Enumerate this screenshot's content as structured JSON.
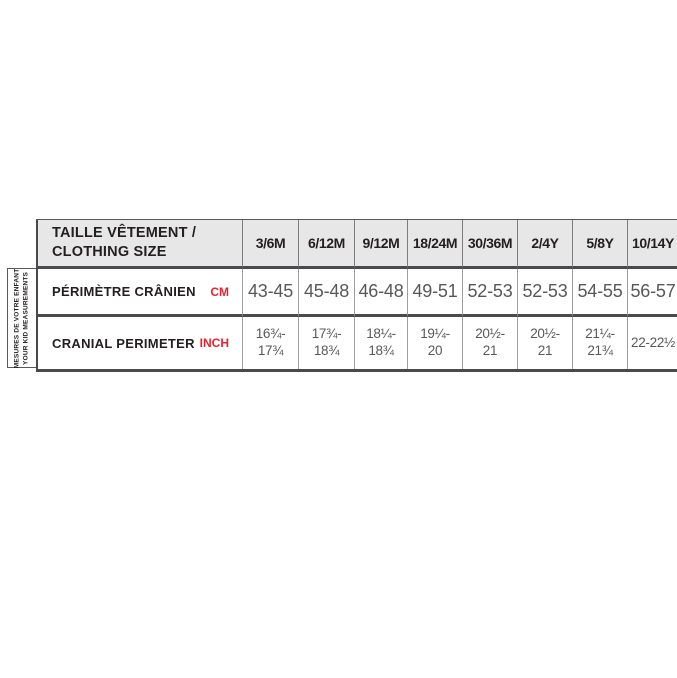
{
  "colors": {
    "accent_red": "#e8232b",
    "header_bg": "#e7e7e7",
    "border_dark": "#4a4a4c",
    "border_light": "#9e9e9e",
    "text_dark": "#231f20",
    "text_value": "#58585a"
  },
  "side_label": {
    "line1": "MESURES DE VOTRE ENFANT",
    "line2": "YOUR KID MEASUREMENTS"
  },
  "table": {
    "header_label": "TAILLE VÊTEMENT /\nCLOTHING SIZE",
    "rows": [
      {
        "label": "PÉRIMÈTRE CRÂNIEN",
        "unit": "CM"
      },
      {
        "label": "CRANIAL PERIMETER",
        "unit": "INCH"
      }
    ],
    "columns": [
      {
        "size": "3/6M",
        "cm": "43-45",
        "inch_line1": "16¾-",
        "inch_line2": "17¾"
      },
      {
        "size": "6/12M",
        "cm": "45-48",
        "inch_line1": "17¾-",
        "inch_line2": "18¾"
      },
      {
        "size": "9/12M",
        "cm": "46-48",
        "inch_line1": "18¼-",
        "inch_line2": "18¾"
      },
      {
        "size": "18/24M",
        "cm": "49-51",
        "inch_line1": "19¼-",
        "inch_line2": "20"
      },
      {
        "size": "30/36M",
        "cm": "52-53",
        "inch_line1": "20½-",
        "inch_line2": "21"
      },
      {
        "size": "2/4Y",
        "cm": "52-53",
        "inch_line1": "20½-",
        "inch_line2": "21"
      },
      {
        "size": "5/8Y",
        "cm": "54-55",
        "inch_line1": "21¼-",
        "inch_line2": "21¾"
      },
      {
        "size": "10/14Y",
        "cm": "56-57",
        "inch_line1": "22-22½",
        "inch_line2": ""
      }
    ]
  },
  "chart_data": {
    "type": "table",
    "title": "TAILLE VÊTEMENT / CLOTHING SIZE",
    "categories": [
      "3/6M",
      "6/12M",
      "9/12M",
      "18/24M",
      "30/36M",
      "2/4Y",
      "5/8Y",
      "10/14Y"
    ],
    "series": [
      {
        "name": "PÉRIMÈTRE CRÂNIEN (CM)",
        "values": [
          "43-45",
          "45-48",
          "46-48",
          "49-51",
          "52-53",
          "52-53",
          "54-55",
          "56-57"
        ]
      },
      {
        "name": "CRANIAL PERIMETER (INCH)",
        "values": [
          "16¾-17¾",
          "17¾-18¾",
          "18¼-18¾",
          "19¼-20",
          "20½-21",
          "20½-21",
          "21¼-21¾",
          "22-22½"
        ]
      }
    ],
    "row_group_label": "MESURES DE VOTRE ENFANT / YOUR KID MEASUREMENTS"
  }
}
